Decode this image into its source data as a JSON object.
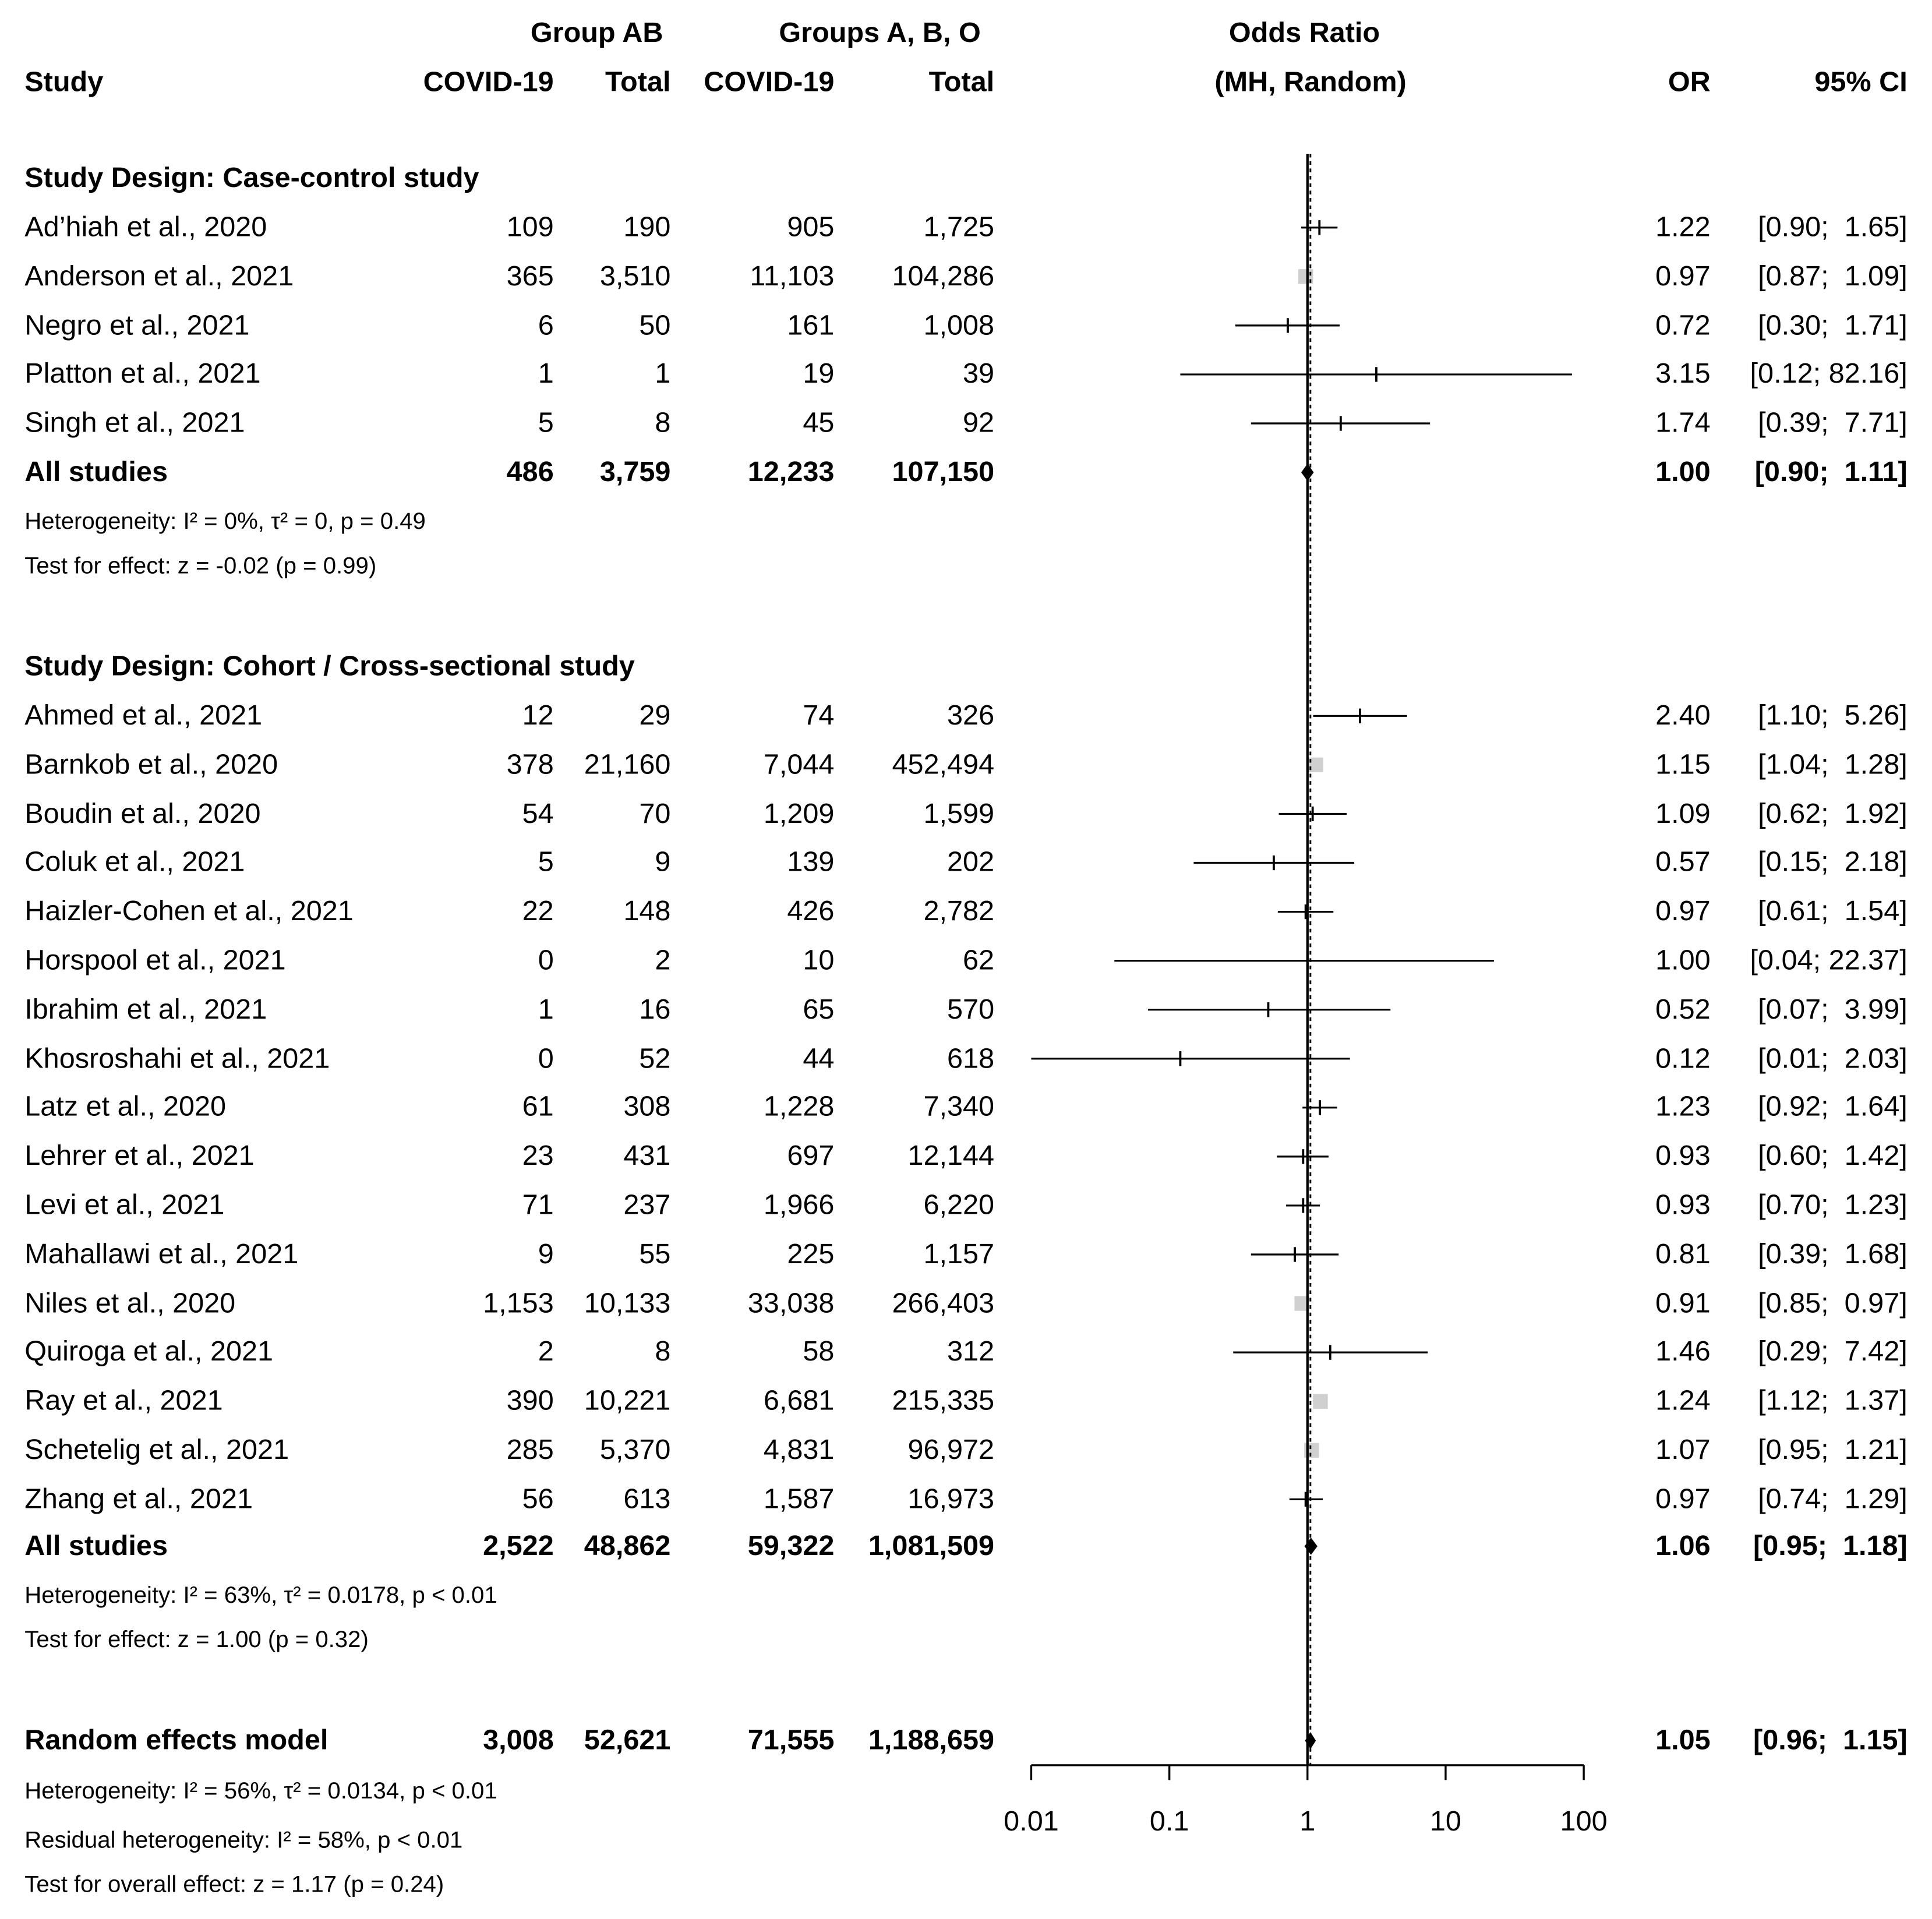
{
  "headers": {
    "group_ab": "Group AB",
    "groups_abo": "Groups A, B, O",
    "study": "Study",
    "covid_ab": "COVID-19",
    "total_ab": "Total",
    "covid_abo": "COVID-19",
    "total_abo": "Total",
    "odds_ratio": "Odds Ratio",
    "method": "(MH, Random)",
    "or": "OR",
    "ci": "95% CI"
  },
  "chart_data": {
    "type": "forest",
    "title": "Odds Ratio (MH, Random)",
    "xscale": "log",
    "xlim": [
      0.01,
      100
    ],
    "xticks": [
      "0.01",
      "0.1",
      "1",
      "10",
      "100"
    ],
    "reference_line": 1,
    "pooled_line": 1.05,
    "groups": [
      {
        "label": "Study Design: Case-control study",
        "studies": [
          {
            "name": "Ad’hiah et al., 2020",
            "e_ab": "109",
            "n_ab": "190",
            "e_abo": "905",
            "n_abo": "1,725",
            "or": 1.22,
            "lo": 0.9,
            "hi": 1.65,
            "or_text": "1.22",
            "ci_text": "[0.90;  1.65]",
            "box": "small"
          },
          {
            "name": "Anderson et al., 2021",
            "e_ab": "365",
            "n_ab": "3,510",
            "e_abo": "11,103",
            "n_abo": "104,286",
            "or": 0.97,
            "lo": 0.87,
            "hi": 1.09,
            "or_text": "0.97",
            "ci_text": "[0.87;  1.09]",
            "box": "large"
          },
          {
            "name": "Negro et al., 2021",
            "e_ab": "6",
            "n_ab": "50",
            "e_abo": "161",
            "n_abo": "1,008",
            "or": 0.72,
            "lo": 0.3,
            "hi": 1.71,
            "or_text": "0.72",
            "ci_text": "[0.30;  1.71]",
            "box": "small"
          },
          {
            "name": "Platton et al., 2021",
            "e_ab": "1",
            "n_ab": "1",
            "e_abo": "19",
            "n_abo": "39",
            "or": 3.15,
            "lo": 0.12,
            "hi": 82.16,
            "or_text": "3.15",
            "ci_text": "[0.12; 82.16]",
            "box": "small"
          },
          {
            "name": "Singh et al., 2021",
            "e_ab": "5",
            "n_ab": "8",
            "e_abo": "45",
            "n_abo": "92",
            "or": 1.74,
            "lo": 0.39,
            "hi": 7.71,
            "or_text": "1.74",
            "ci_text": "[0.39;  7.71]",
            "box": "small"
          }
        ],
        "summary": {
          "label": "All studies",
          "e_ab": "486",
          "n_ab": "3,759",
          "e_abo": "12,233",
          "n_abo": "107,150",
          "or": 1.0,
          "lo": 0.9,
          "hi": 1.11,
          "or_text": "1.00",
          "ci_text": "[0.90;  1.11]"
        },
        "heterogeneity": "Heterogeneity: I² = 0%, τ² = 0, p = 0.49",
        "test": "Test for effect: z = -0.02 (p = 0.99)"
      },
      {
        "label": "Study Design: Cohort / Cross-sectional study",
        "studies": [
          {
            "name": "Ahmed et al., 2021",
            "e_ab": "12",
            "n_ab": "29",
            "e_abo": "74",
            "n_abo": "326",
            "or": 2.4,
            "lo": 1.1,
            "hi": 5.26,
            "or_text": "2.40",
            "ci_text": "[1.10;  5.26]",
            "box": "small"
          },
          {
            "name": "Barnkob et al., 2020",
            "e_ab": "378",
            "n_ab": "21,160",
            "e_abo": "7,044",
            "n_abo": "452,494",
            "or": 1.15,
            "lo": 1.04,
            "hi": 1.28,
            "or_text": "1.15",
            "ci_text": "[1.04;  1.28]",
            "box": "large"
          },
          {
            "name": "Boudin et al., 2020",
            "e_ab": "54",
            "n_ab": "70",
            "e_abo": "1,209",
            "n_abo": "1,599",
            "or": 1.09,
            "lo": 0.62,
            "hi": 1.92,
            "or_text": "1.09",
            "ci_text": "[0.62;  1.92]",
            "box": "small"
          },
          {
            "name": "Coluk et al., 2021",
            "e_ab": "5",
            "n_ab": "9",
            "e_abo": "139",
            "n_abo": "202",
            "or": 0.57,
            "lo": 0.15,
            "hi": 2.18,
            "or_text": "0.57",
            "ci_text": "[0.15;  2.18]",
            "box": "small"
          },
          {
            "name": "Haizler-Cohen et al., 2021",
            "e_ab": "22",
            "n_ab": "148",
            "e_abo": "426",
            "n_abo": "2,782",
            "or": 0.97,
            "lo": 0.61,
            "hi": 1.54,
            "or_text": "0.97",
            "ci_text": "[0.61;  1.54]",
            "box": "small"
          },
          {
            "name": "Horspool et al., 2021",
            "e_ab": "0",
            "n_ab": "2",
            "e_abo": "10",
            "n_abo": "62",
            "or": 1.0,
            "lo": 0.04,
            "hi": 22.37,
            "or_text": "1.00",
            "ci_text": "[0.04; 22.37]",
            "box": "small"
          },
          {
            "name": "Ibrahim et al., 2021",
            "e_ab": "1",
            "n_ab": "16",
            "e_abo": "65",
            "n_abo": "570",
            "or": 0.52,
            "lo": 0.07,
            "hi": 3.99,
            "or_text": "0.52",
            "ci_text": "[0.07;  3.99]",
            "box": "small"
          },
          {
            "name": "Khosroshahi et al., 2021",
            "e_ab": "0",
            "n_ab": "52",
            "e_abo": "44",
            "n_abo": "618",
            "or": 0.12,
            "lo": 0.01,
            "hi": 2.03,
            "or_text": "0.12",
            "ci_text": "[0.01;  2.03]",
            "box": "small"
          },
          {
            "name": "Latz et al., 2020",
            "e_ab": "61",
            "n_ab": "308",
            "e_abo": "1,228",
            "n_abo": "7,340",
            "or": 1.23,
            "lo": 0.92,
            "hi": 1.64,
            "or_text": "1.23",
            "ci_text": "[0.92;  1.64]",
            "box": "small"
          },
          {
            "name": "Lehrer et al., 2021",
            "e_ab": "23",
            "n_ab": "431",
            "e_abo": "697",
            "n_abo": "12,144",
            "or": 0.93,
            "lo": 0.6,
            "hi": 1.42,
            "or_text": "0.93",
            "ci_text": "[0.60;  1.42]",
            "box": "small"
          },
          {
            "name": "Levi et al., 2021",
            "e_ab": "71",
            "n_ab": "237",
            "e_abo": "1,966",
            "n_abo": "6,220",
            "or": 0.93,
            "lo": 0.7,
            "hi": 1.23,
            "or_text": "0.93",
            "ci_text": "[0.70;  1.23]",
            "box": "small"
          },
          {
            "name": "Mahallawi et al., 2021",
            "e_ab": "9",
            "n_ab": "55",
            "e_abo": "225",
            "n_abo": "1,157",
            "or": 0.81,
            "lo": 0.39,
            "hi": 1.68,
            "or_text": "0.81",
            "ci_text": "[0.39;  1.68]",
            "box": "small"
          },
          {
            "name": "Niles et al., 2020",
            "e_ab": "1,153",
            "n_ab": "10,133",
            "e_abo": "33,038",
            "n_abo": "266,403",
            "or": 0.91,
            "lo": 0.85,
            "hi": 0.97,
            "or_text": "0.91",
            "ci_text": "[0.85;  0.97]",
            "box": "large"
          },
          {
            "name": "Quiroga et al., 2021",
            "e_ab": "2",
            "n_ab": "8",
            "e_abo": "58",
            "n_abo": "312",
            "or": 1.46,
            "lo": 0.29,
            "hi": 7.42,
            "or_text": "1.46",
            "ci_text": "[0.29;  7.42]",
            "box": "small"
          },
          {
            "name": "Ray et al., 2021",
            "e_ab": "390",
            "n_ab": "10,221",
            "e_abo": "6,681",
            "n_abo": "215,335",
            "or": 1.24,
            "lo": 1.12,
            "hi": 1.37,
            "or_text": "1.24",
            "ci_text": "[1.12;  1.37]",
            "box": "large"
          },
          {
            "name": "Schetelig et al., 2021",
            "e_ab": "285",
            "n_ab": "5,370",
            "e_abo": "4,831",
            "n_abo": "96,972",
            "or": 1.07,
            "lo": 0.95,
            "hi": 1.21,
            "or_text": "1.07",
            "ci_text": "[0.95;  1.21]",
            "box": "large"
          },
          {
            "name": "Zhang et al., 2021",
            "e_ab": "56",
            "n_ab": "613",
            "e_abo": "1,587",
            "n_abo": "16,973",
            "or": 0.97,
            "lo": 0.74,
            "hi": 1.29,
            "or_text": "0.97",
            "ci_text": "[0.74;  1.29]",
            "box": "small"
          }
        ],
        "summary": {
          "label": "All studies",
          "e_ab": "2,522",
          "n_ab": "48,862",
          "e_abo": "59,322",
          "n_abo": "1,081,509",
          "or": 1.06,
          "lo": 0.95,
          "hi": 1.18,
          "or_text": "1.06",
          "ci_text": "[0.95;  1.18]"
        },
        "heterogeneity": "Heterogeneity: I² = 63%, τ² = 0.0178, p < 0.01",
        "test": "Test for effect: z = 1.00 (p = 0.32)"
      }
    ],
    "overall": {
      "label": "Random effects model",
      "e_ab": "3,008",
      "n_ab": "52,621",
      "e_abo": "71,555",
      "n_abo": "1,188,659",
      "or": 1.05,
      "lo": 0.96,
      "hi": 1.15,
      "or_text": "1.05",
      "ci_text": "[0.96;  1.15]",
      "heterogeneity": "Heterogeneity: I² = 56%, τ² = 0.0134, p < 0.01",
      "residual": "Residual heterogeneity: I² = 58%, p < 0.01",
      "test": "Test for overall effect: z = 1.17 (p = 0.24)"
    }
  }
}
